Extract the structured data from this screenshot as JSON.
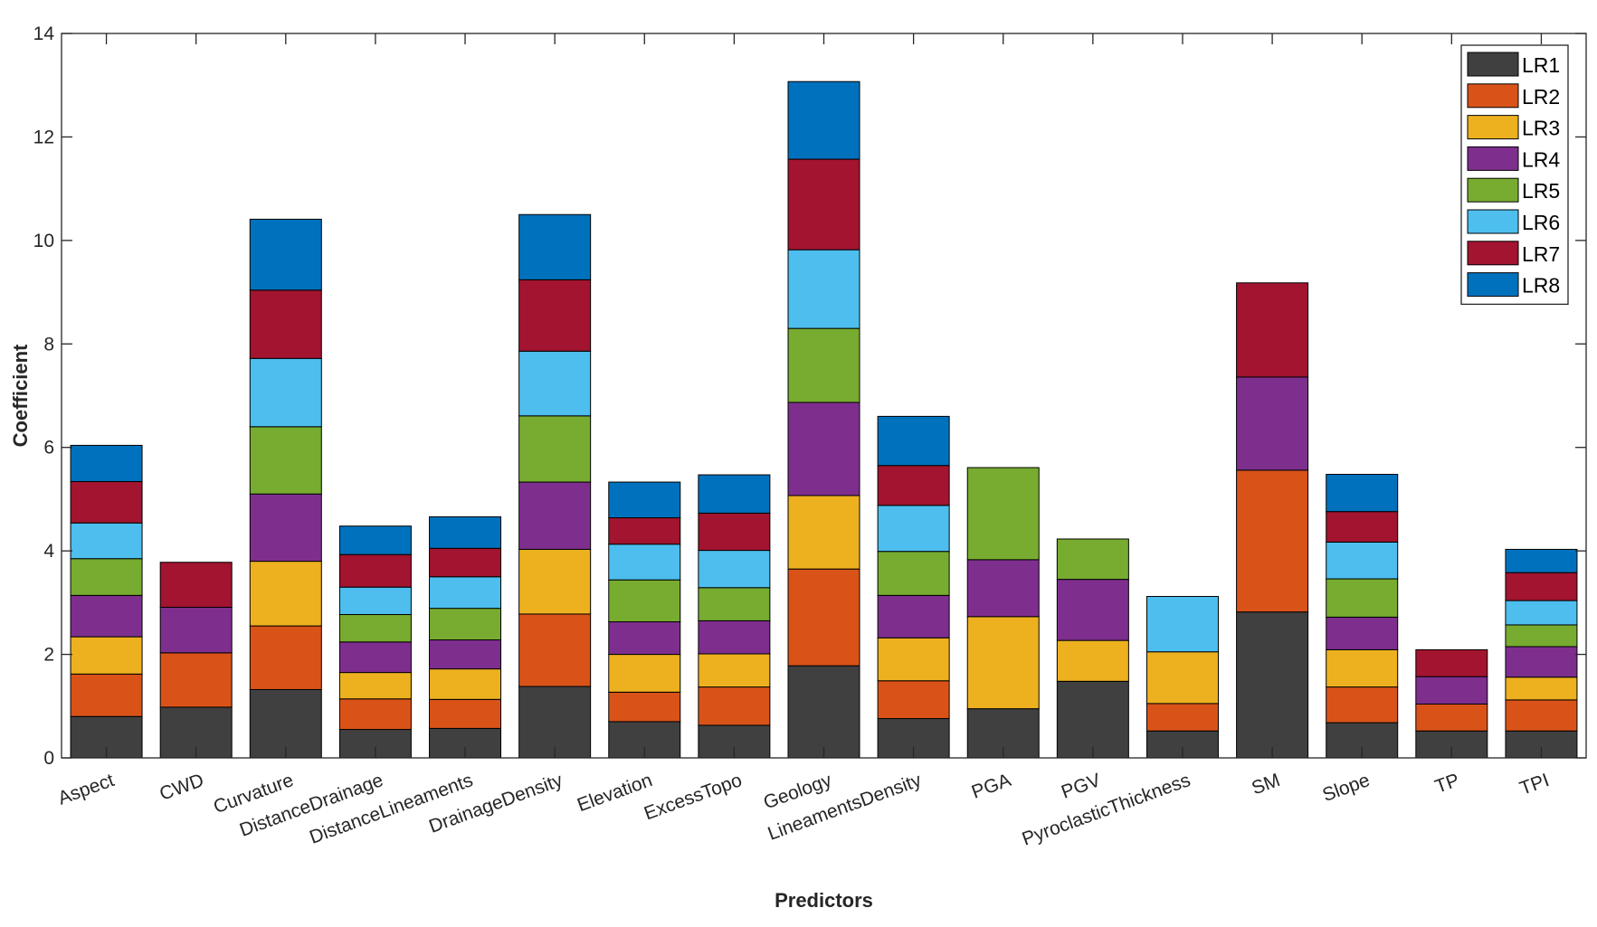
{
  "chart_data": {
    "type": "bar",
    "stacked": true,
    "title": "",
    "xlabel": "Predictors",
    "ylabel": "Coefficient",
    "ylim": [
      0,
      14
    ],
    "yticks": [
      "0",
      "2",
      "4",
      "6",
      "8",
      "10",
      "12",
      "14"
    ],
    "legend_position": "top-right",
    "categories": [
      "Aspect",
      "CWD",
      "Curvature",
      "DistanceDrainage",
      "DistanceLineaments",
      "DrainageDensity",
      "Elevation",
      "ExcessTopo",
      "Geology",
      "LineamentsDensity",
      "PGA",
      "PGV",
      "PyroclasticThickness",
      "SM",
      "Slope",
      "TP",
      "TPI"
    ],
    "series": [
      {
        "name": "LR1",
        "color": "#404040",
        "values": [
          0.8,
          0.98,
          1.32,
          0.55,
          0.57,
          1.38,
          0.7,
          0.63,
          1.78,
          0.76,
          0.95,
          1.48,
          0.52,
          2.82,
          0.68,
          0.52,
          0.52
        ]
      },
      {
        "name": "LR2",
        "color": "#D95319",
        "values": [
          0.82,
          1.05,
          1.23,
          0.59,
          0.56,
          1.4,
          0.57,
          0.74,
          1.87,
          0.73,
          0.0,
          0.0,
          0.53,
          2.74,
          0.69,
          0.52,
          0.6
        ]
      },
      {
        "name": "LR3",
        "color": "#EDB120",
        "values": [
          0.72,
          0.0,
          1.25,
          0.51,
          0.59,
          1.25,
          0.73,
          0.64,
          1.42,
          0.83,
          1.78,
          0.79,
          1.0,
          0.0,
          0.72,
          0.0,
          0.44
        ]
      },
      {
        "name": "LR4",
        "color": "#7E2F8E",
        "values": [
          0.8,
          0.88,
          1.3,
          0.59,
          0.56,
          1.3,
          0.63,
          0.64,
          1.8,
          0.82,
          1.1,
          1.18,
          0.0,
          1.8,
          0.63,
          0.53,
          0.59
        ]
      },
      {
        "name": "LR5",
        "color": "#77AC30",
        "values": [
          0.71,
          0.0,
          1.3,
          0.53,
          0.61,
          1.28,
          0.81,
          0.64,
          1.43,
          0.85,
          1.78,
          0.78,
          0.0,
          0.0,
          0.74,
          0.0,
          0.42
        ]
      },
      {
        "name": "LR6",
        "color": "#4DBEEE",
        "values": [
          0.69,
          0.0,
          1.32,
          0.53,
          0.61,
          1.25,
          0.69,
          0.72,
          1.52,
          0.89,
          0.0,
          0.0,
          1.07,
          0.0,
          0.71,
          0.0,
          0.47
        ]
      },
      {
        "name": "LR7",
        "color": "#A2142F",
        "values": [
          0.8,
          0.87,
          1.32,
          0.63,
          0.55,
          1.38,
          0.51,
          0.72,
          1.75,
          0.77,
          0.0,
          0.0,
          0.0,
          1.82,
          0.59,
          0.52,
          0.54
        ]
      },
      {
        "name": "LR8",
        "color": "#0072BD",
        "values": [
          0.7,
          0.0,
          1.37,
          0.55,
          0.61,
          1.26,
          0.69,
          0.74,
          1.5,
          0.95,
          0.0,
          0.0,
          0.0,
          0.0,
          0.72,
          0.0,
          0.45
        ]
      }
    ]
  }
}
